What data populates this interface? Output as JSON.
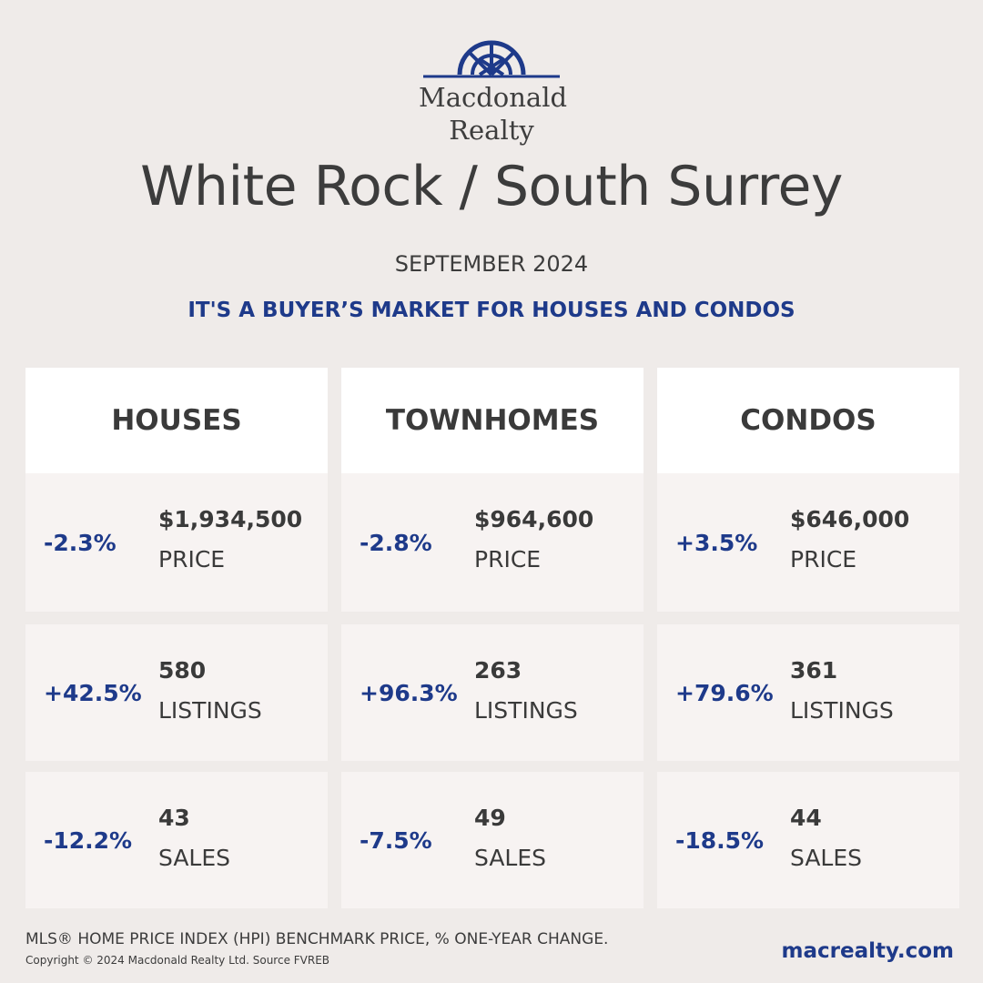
{
  "brand": {
    "line1": "Macdonald",
    "line2": "Realty",
    "color": "#1e3a8a"
  },
  "title": "White Rock / South Surrey",
  "subtitle": "SEPTEMBER 2024",
  "tagline": "IT'S A BUYER’S MARKET FOR HOUSES AND CONDOS",
  "columns": [
    {
      "name": "HOUSES",
      "rows": [
        {
          "change": "-2.3%",
          "value": "$1,934,500",
          "metric": "PRICE"
        },
        {
          "change": "+42.5%",
          "value": "580",
          "metric": "LISTINGS"
        },
        {
          "change": "-12.2%",
          "value": "43",
          "metric": "SALES"
        }
      ]
    },
    {
      "name": "TOWNHOMES",
      "rows": [
        {
          "change": "-2.8%",
          "value": "$964,600",
          "metric": "PRICE"
        },
        {
          "change": "+96.3%",
          "value": "263",
          "metric": "LISTINGS"
        },
        {
          "change": "-7.5%",
          "value": "49",
          "metric": "SALES"
        }
      ]
    },
    {
      "name": "CONDOS",
      "rows": [
        {
          "change": "+3.5%",
          "value": "$646,000",
          "metric": "PRICE"
        },
        {
          "change": "+79.6%",
          "value": "361",
          "metric": "LISTINGS"
        },
        {
          "change": "-18.5%",
          "value": "44",
          "metric": "SALES"
        }
      ]
    }
  ],
  "footer": {
    "note": "MLS® HOME PRICE INDEX (HPI) BENCHMARK PRICE, % ONE-YEAR CHANGE.",
    "copyright": "Copyright © 2024 Macdonald Realty Ltd. Source FVREB",
    "website": "macrealty.com"
  }
}
